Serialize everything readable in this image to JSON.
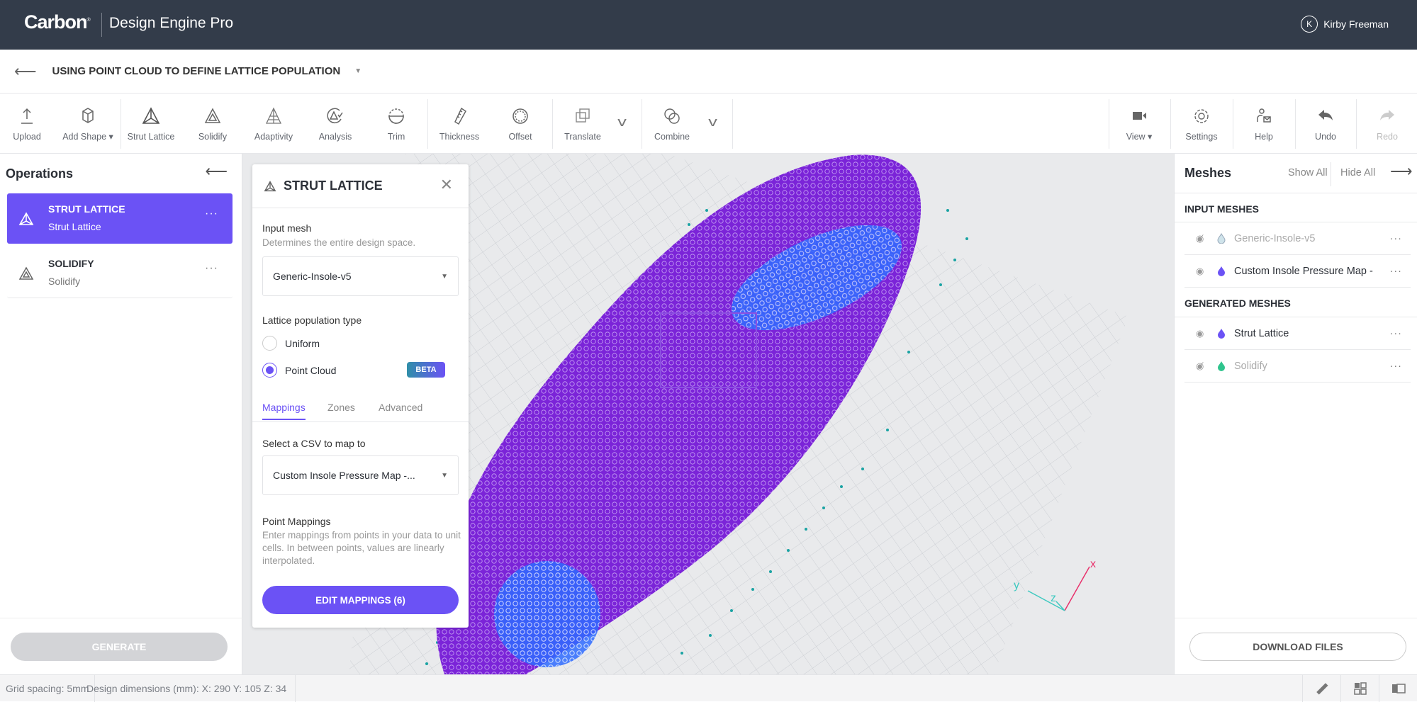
{
  "header": {
    "brand": "Carbon",
    "app_name": "Design Engine Pro",
    "user": {
      "initial": "K",
      "name": "Kirby Freeman"
    }
  },
  "document": {
    "title": "USING POINT CLOUD TO DEFINE LATTICE POPULATION"
  },
  "toolbar": {
    "items": [
      {
        "label": "Upload",
        "icon": "upload-icon"
      },
      {
        "label": "Add Shape ▾",
        "icon": "cube-icon"
      },
      {
        "label": "Strut Lattice",
        "icon": "strut-lattice-icon"
      },
      {
        "label": "Solidify",
        "icon": "solidify-icon"
      },
      {
        "label": "Adaptivity",
        "icon": "adaptivity-icon"
      },
      {
        "label": "Analysis",
        "icon": "analysis-icon"
      },
      {
        "label": "Trim",
        "icon": "trim-icon"
      },
      {
        "label": "Thickness",
        "icon": "thickness-icon"
      },
      {
        "label": "Offset",
        "icon": "offset-icon"
      },
      {
        "label": "Translate",
        "icon": "translate-icon"
      },
      {
        "label": "Combine",
        "icon": "combine-icon"
      }
    ],
    "right_items": [
      {
        "label": "View ▾",
        "icon": "camera-icon"
      },
      {
        "label": "Settings",
        "icon": "gear-icon"
      },
      {
        "label": "Help",
        "icon": "help-icon"
      },
      {
        "label": "Undo",
        "icon": "undo-icon"
      },
      {
        "label": "Redo",
        "icon": "redo-icon",
        "disabled": true
      }
    ]
  },
  "operations": {
    "title": "Operations",
    "items": [
      {
        "name": "STRUT LATTICE",
        "subtitle": "Strut Lattice",
        "active": true
      },
      {
        "name": "SOLIDIFY",
        "subtitle": "Solidify",
        "active": false
      }
    ],
    "generate_label": "GENERATE"
  },
  "panel": {
    "title": "STRUT LATTICE",
    "input_mesh_label": "Input mesh",
    "input_mesh_help": "Determines the entire design space.",
    "input_mesh_value": "Generic-Insole-v5",
    "population_label": "Lattice population type",
    "options": [
      {
        "label": "Uniform",
        "selected": false
      },
      {
        "label": "Point Cloud",
        "selected": true,
        "badge": "BETA"
      }
    ],
    "tabs": [
      {
        "label": "Mappings",
        "active": true
      },
      {
        "label": "Zones"
      },
      {
        "label": "Advanced"
      }
    ],
    "csv_label": "Select a CSV to map to",
    "csv_value": "Custom Insole Pressure Map -...",
    "point_mappings_label": "Point Mappings",
    "point_mappings_help": "Enter mappings from points in your data to unit cells. In between points, values are linearly interpolated.",
    "edit_button": "EDIT MAPPINGS (6)"
  },
  "meshes": {
    "title": "Meshes",
    "show_all": "Show All",
    "hide_all": "Hide All",
    "input_header": "INPUT MESHES",
    "input": [
      {
        "name": "Generic-Insole-v5",
        "color": "#cfe3ea",
        "visible": false
      },
      {
        "name": "Custom Insole Pressure Map -",
        "color": "#6b52f5",
        "visible": true
      }
    ],
    "generated_header": "GENERATED MESHES",
    "generated": [
      {
        "name": "Strut Lattice",
        "color": "#6b52f5",
        "visible": true
      },
      {
        "name": "Solidify",
        "color": "#2fc48d",
        "visible": false
      }
    ],
    "download_label": "DOWNLOAD FILES"
  },
  "viewport": {
    "axes": {
      "x": "x",
      "y": "y",
      "z": "z"
    },
    "colors": {
      "lattice": "#7a1fd6",
      "dense": "#2f6bff",
      "grid": "#c9ccd1",
      "points": "#1aa3a3"
    }
  },
  "status": {
    "grid_spacing": "Grid spacing: 5mm",
    "dimensions": "Design dimensions (mm): X: 290  Y: 105  Z: 34"
  }
}
